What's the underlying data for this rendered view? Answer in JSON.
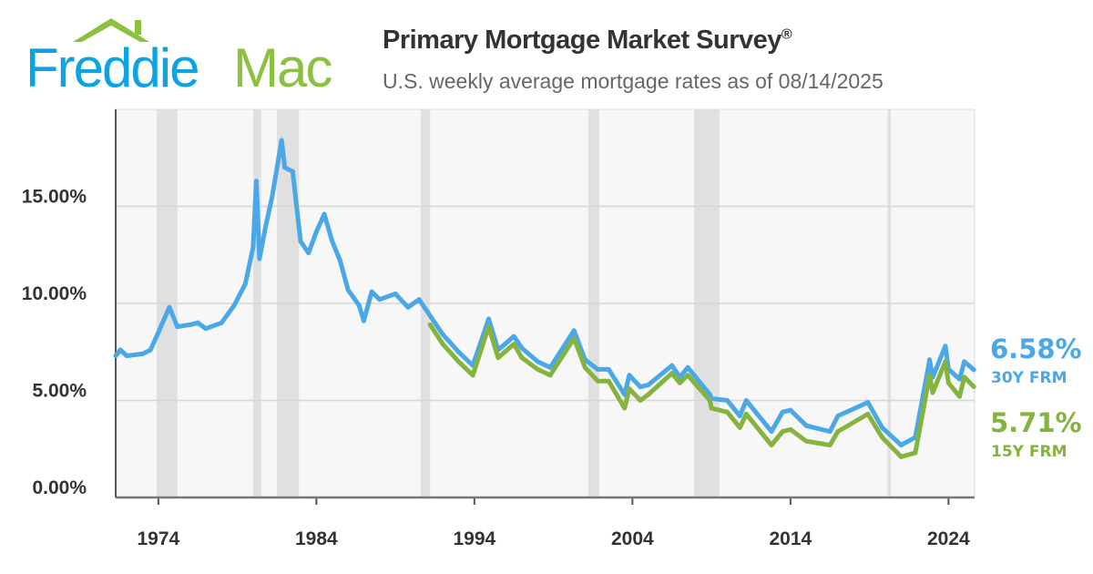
{
  "header": {
    "logo_text_1": "Freddie",
    "logo_text_2": "Mac",
    "title": "Primary Mortgage Market Survey",
    "title_mark": "®",
    "subtitle": "U.S. weekly average mortgage rates as of 08/14/2025"
  },
  "colors": {
    "series_30y": "#4aa8e8",
    "series_15y": "#84b33e",
    "logo_blue": "#0aa3e3",
    "logo_green": "#8cc13f",
    "recession": "#e0e0e0"
  },
  "latest": {
    "rate_30y": "6.58%",
    "label_30y": "30Y FRM",
    "rate_15y": "5.71%",
    "label_15y": "15Y FRM"
  },
  "chart_data": {
    "type": "line",
    "title": "Primary Mortgage Market Survey®",
    "subtitle": "U.S. weekly average mortgage rates as of 08/14/2025",
    "xlim": [
      1971.3,
      2025.65
    ],
    "ylim": [
      0,
      20
    ],
    "grid": true,
    "x_ticks": [
      1974,
      1984,
      1994,
      2004,
      2014,
      2024
    ],
    "x_tick_labels": [
      "1974",
      "1984",
      "1994",
      "2004",
      "2014",
      "2024"
    ],
    "y_ticks": [
      0,
      5,
      10,
      15
    ],
    "y_tick_labels": [
      "0.00%",
      "5.00%",
      "10.00%",
      "15.00%"
    ],
    "recessions": [
      [
        1973.9,
        1975.2
      ],
      [
        1980.0,
        1980.5
      ],
      [
        1981.5,
        1982.9
      ],
      [
        1990.6,
        1991.2
      ],
      [
        2001.2,
        2001.9
      ],
      [
        2007.9,
        2009.5
      ],
      [
        2020.15,
        2020.35
      ]
    ],
    "series": [
      {
        "name": "30Y FRM",
        "x": [
          1971.3,
          1971.6,
          1972,
          1973,
          1973.5,
          1974,
          1974.7,
          1975.2,
          1976,
          1976.5,
          1977,
          1978,
          1978.8,
          1979.5,
          1980.0,
          1980.2,
          1980.4,
          1980.8,
          1981.2,
          1981.8,
          1982.0,
          1982.5,
          1983,
          1983.5,
          1984,
          1984.5,
          1985,
          1985.5,
          1986,
          1986.7,
          1987,
          1987.5,
          1988,
          1989,
          1989.8,
          1990.5,
          1991,
          1992,
          1993,
          1993.9,
          1994.9,
          1995.5,
          1996.5,
          1997,
          1998,
          1998.8,
          2000.3,
          2001,
          2001.8,
          2002.5,
          2003.5,
          2003.8,
          2004.5,
          2005,
          2006.5,
          2007,
          2007.5,
          2008.9,
          2009,
          2010,
          2010.8,
          2011.2,
          2012.8,
          2013.5,
          2014,
          2015,
          2016.5,
          2017,
          2018.9,
          2019.8,
          2021,
          2021.9,
          2022.4,
          2022.8,
          2023,
          2023.8,
          2024,
          2024.7,
          2025,
          2025.6
        ],
        "values": [
          7.3,
          7.6,
          7.3,
          7.4,
          7.6,
          8.5,
          9.8,
          8.8,
          8.9,
          9.0,
          8.7,
          9.0,
          9.9,
          11.0,
          12.9,
          16.3,
          12.3,
          14.0,
          15.5,
          18.4,
          17.0,
          16.8,
          13.2,
          12.6,
          13.7,
          14.6,
          13.2,
          12.2,
          10.7,
          9.9,
          9.1,
          10.6,
          10.2,
          10.5,
          9.8,
          10.2,
          9.6,
          8.4,
          7.5,
          6.8,
          9.2,
          7.6,
          8.3,
          7.7,
          7.0,
          6.7,
          8.6,
          7.1,
          6.6,
          6.6,
          5.3,
          6.3,
          5.7,
          5.8,
          6.8,
          6.2,
          6.7,
          5.3,
          5.1,
          5.0,
          4.2,
          5.0,
          3.4,
          4.4,
          4.5,
          3.7,
          3.4,
          4.2,
          4.9,
          3.6,
          2.7,
          3.1,
          5.3,
          7.1,
          6.2,
          7.8,
          6.6,
          6.1,
          7.0,
          6.58
        ]
      },
      {
        "name": "15Y FRM",
        "x": [
          1991.2,
          1992,
          1993,
          1993.9,
          1994.9,
          1995.5,
          1996.5,
          1997,
          1998,
          1998.8,
          2000.3,
          2001,
          2001.8,
          2002.5,
          2003.5,
          2003.8,
          2004.5,
          2005,
          2006.5,
          2007,
          2007.5,
          2008.9,
          2009,
          2010,
          2010.8,
          2011.2,
          2012.8,
          2013.5,
          2014,
          2015,
          2016.5,
          2017,
          2018.9,
          2019.8,
          2021,
          2021.9,
          2022.4,
          2022.8,
          2023,
          2023.8,
          2024,
          2024.7,
          2025,
          2025.6
        ],
        "values": [
          8.9,
          7.9,
          7.0,
          6.3,
          8.8,
          7.2,
          7.9,
          7.2,
          6.6,
          6.3,
          8.2,
          6.7,
          6.0,
          6.0,
          4.6,
          5.6,
          5.0,
          5.3,
          6.4,
          5.9,
          6.3,
          5.0,
          4.6,
          4.4,
          3.6,
          4.3,
          2.7,
          3.4,
          3.5,
          2.9,
          2.7,
          3.4,
          4.3,
          3.1,
          2.1,
          2.3,
          4.5,
          6.3,
          5.4,
          7.0,
          5.9,
          5.2,
          6.2,
          5.71
        ]
      }
    ]
  }
}
